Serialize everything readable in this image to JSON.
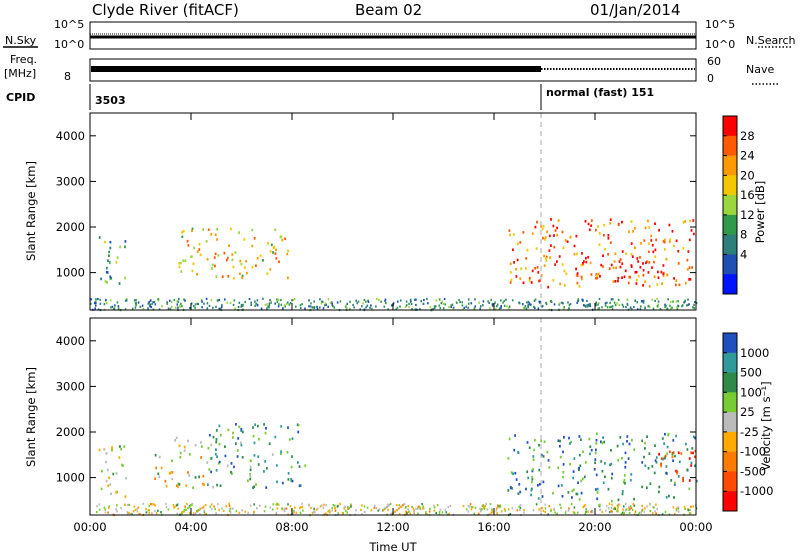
{
  "header": {
    "station": "Clyde River (fitACF)",
    "beam": "Beam 02",
    "date": "01/Jan/2014"
  },
  "noise_panel": {
    "left_label": "N.Sky",
    "right_label": "N.Search",
    "ticks_left": [
      "10^5",
      "10^0"
    ],
    "ticks_right": [
      "10^5",
      "10^0"
    ]
  },
  "freq_panel": {
    "left_label_line1": "Freq.",
    "left_label_line2": "[MHz]",
    "right_label": "Nave",
    "tick_left": "8",
    "ticks_right": [
      "60",
      "0"
    ]
  },
  "cpid_panel": {
    "label": "CPID",
    "id_before": "3503",
    "mode_after": "normal (fast) 151"
  },
  "chart_data": [
    {
      "type": "heatmap",
      "title": "",
      "ylabel": "Slant Range [km]",
      "ylim": [
        180,
        4500
      ],
      "yticks": [
        "1000",
        "2000",
        "3000",
        "4000"
      ],
      "colorbar_label": "Power [dB]",
      "colorbar_ticks": [
        "28",
        "24",
        "20",
        "16",
        "12",
        "8",
        "4"
      ],
      "colorbar_colors": [
        "#ff0000",
        "#ff5a00",
        "#ff9900",
        "#f2c800",
        "#9ad63c",
        "#2f9a4a",
        "#2d7f7a",
        "#1f4fb0",
        "#0014ff"
      ],
      "regions": [
        {
          "x": [
            0.3,
            1.5
          ],
          "y": [
            700,
            1800
          ],
          "level": 0.35
        },
        {
          "x": [
            3.5,
            7.9
          ],
          "y": [
            900,
            2000
          ],
          "level": 0.65
        },
        {
          "x": [
            16.5,
            24
          ],
          "y": [
            700,
            2200
          ],
          "level": 0.8
        },
        {
          "x": [
            19.0,
            23.0
          ],
          "y": [
            900,
            1400
          ],
          "level": 0.95
        }
      ]
    },
    {
      "type": "heatmap",
      "title": "",
      "xlabel": "Time UT",
      "ylabel": "Slant Range [km]",
      "ylim": [
        180,
        4500
      ],
      "yticks": [
        "1000",
        "2000",
        "3000",
        "4000"
      ],
      "xticks": [
        "00:00",
        "04:00",
        "08:00",
        "12:00",
        "16:00",
        "20:00",
        "00:00"
      ],
      "colorbar_label": "Velocity  [m s⁻¹]",
      "colorbar_ticks": [
        "1000",
        "500",
        "100",
        "25",
        "-25",
        "-100",
        "-500",
        "-1000"
      ],
      "colorbar_colors": [
        "#2050c0",
        "#2f9a9a",
        "#2f8a4a",
        "#77cc33",
        "#bbbbbb",
        "#ffaa00",
        "#ff7a00",
        "#ff4a00",
        "#ff0000"
      ],
      "regions": [
        {
          "x": [
            0.3,
            1.5
          ],
          "y": [
            600,
            1800
          ],
          "level": 0.55
        },
        {
          "x": [
            2.5,
            4.5
          ],
          "y": [
            800,
            1900
          ],
          "level": 0.5
        },
        {
          "x": [
            4.5,
            8.5
          ],
          "y": [
            800,
            2200
          ],
          "level": 0.75
        },
        {
          "x": [
            16.5,
            24
          ],
          "y": [
            500,
            2000
          ],
          "level": 0.8
        },
        {
          "x": [
            22.5,
            24
          ],
          "y": [
            900,
            1700
          ],
          "level": 0.1
        }
      ]
    }
  ]
}
